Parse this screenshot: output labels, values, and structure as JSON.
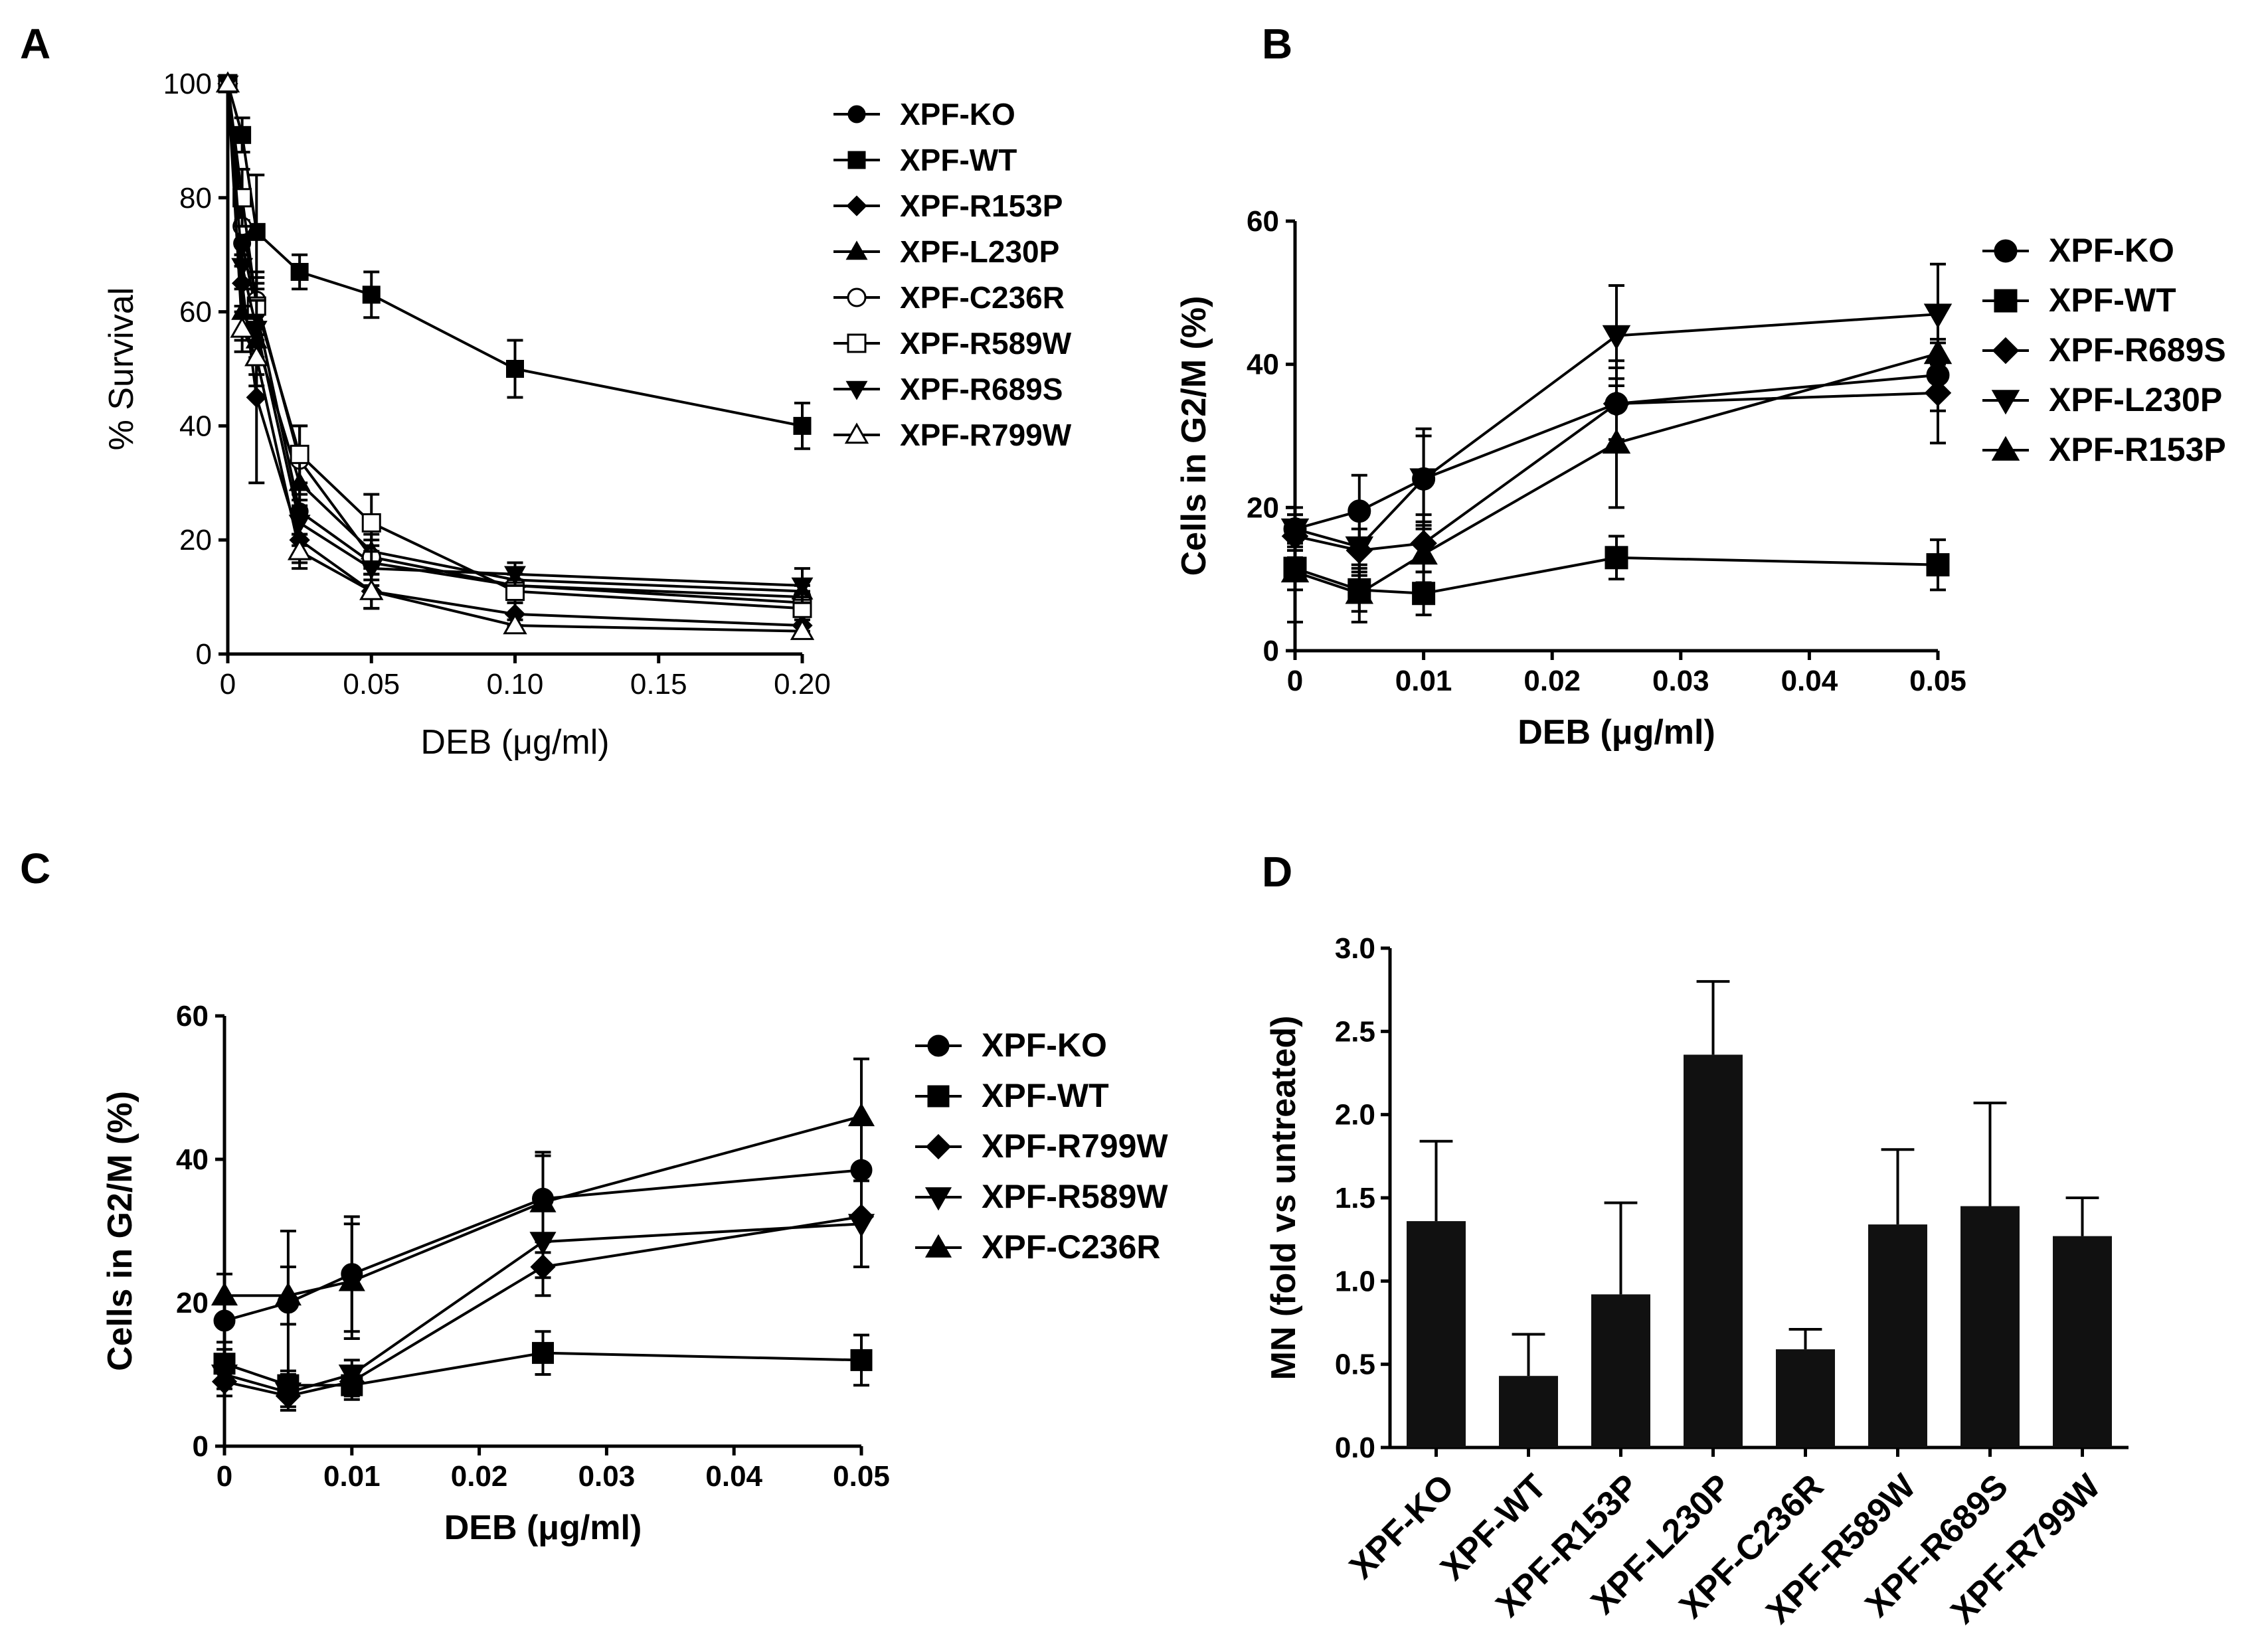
{
  "panels": {
    "A": "A",
    "B": "B",
    "C": "C",
    "D": "D"
  },
  "chart_data": [
    {
      "id": "A",
      "type": "line",
      "xlabel": "DEB (μg/ml)",
      "ylabel": "% Survival",
      "xlim": [
        0,
        0.2
      ],
      "ylim": [
        0,
        100
      ],
      "xticks": [
        0,
        0.05,
        0.1,
        0.15,
        0.2
      ],
      "xtick_labels": [
        "0",
        "0.05",
        "0.10",
        "0.15",
        "0.20"
      ],
      "yticks": [
        0,
        20,
        40,
        60,
        80,
        100
      ],
      "ytick_labels": [
        "0",
        "20",
        "40",
        "60",
        "80",
        "100"
      ],
      "x": [
        0,
        0.005,
        0.01,
        0.025,
        0.05,
        0.1,
        0.2
      ],
      "series": [
        {
          "name": "XPF-KO",
          "marker": "circle",
          "fill": "#000",
          "values": [
            100,
            72,
            60,
            25,
            16,
            12,
            10
          ],
          "err": [
            0,
            4,
            5,
            4,
            3,
            2,
            2
          ]
        },
        {
          "name": "XPF-WT",
          "marker": "square",
          "fill": "#000",
          "values": [
            100,
            91,
            74,
            67,
            63,
            50,
            40
          ],
          "err": [
            0,
            3,
            10,
            3,
            4,
            5,
            4
          ]
        },
        {
          "name": "XPF-R153P",
          "marker": "diamond",
          "fill": "#000",
          "values": [
            100,
            65,
            45,
            20,
            11,
            7,
            5
          ],
          "err": [
            0,
            5,
            15,
            4,
            3,
            2,
            1
          ]
        },
        {
          "name": "XPF-L230P",
          "marker": "triangle-up",
          "fill": "#000",
          "values": [
            100,
            60,
            55,
            30,
            18,
            13,
            11
          ],
          "err": [
            0,
            5,
            6,
            4,
            3,
            2,
            2
          ]
        },
        {
          "name": "XPF-C236R",
          "marker": "circle",
          "fill": "#fff",
          "values": [
            100,
            75,
            62,
            34,
            17,
            12,
            9
          ],
          "err": [
            0,
            5,
            5,
            6,
            3,
            2,
            2
          ]
        },
        {
          "name": "XPF-R589W",
          "marker": "square",
          "fill": "#fff",
          "values": [
            100,
            80,
            61,
            35,
            23,
            11,
            8
          ],
          "err": [
            0,
            5,
            5,
            5,
            5,
            2,
            2
          ]
        },
        {
          "name": "XPF-R689S",
          "marker": "triangle-down",
          "fill": "#000",
          "values": [
            100,
            68,
            57,
            23,
            15,
            14,
            12
          ],
          "err": [
            0,
            4,
            5,
            4,
            3,
            2,
            3
          ]
        },
        {
          "name": "XPF-R799W",
          "marker": "triangle-up",
          "fill": "#fff",
          "values": [
            100,
            57,
            52,
            18,
            11,
            5,
            4
          ],
          "err": [
            0,
            4,
            5,
            3,
            3,
            1,
            1
          ]
        }
      ]
    },
    {
      "id": "B",
      "type": "line",
      "xlabel": "DEB (μg/ml)",
      "ylabel": "Cells in G2/M (%)",
      "xlim": [
        0,
        0.05
      ],
      "ylim": [
        0,
        60
      ],
      "xticks": [
        0,
        0.01,
        0.02,
        0.03,
        0.04,
        0.05
      ],
      "xtick_labels": [
        "0",
        "0.01",
        "0.02",
        "0.03",
        "0.04",
        "0.05"
      ],
      "yticks": [
        0,
        20,
        40,
        60
      ],
      "ytick_labels": [
        "0",
        "20",
        "40",
        "60"
      ],
      "x": [
        0,
        0.005,
        0.01,
        0.025,
        0.05
      ],
      "series": [
        {
          "name": "XPF-KO",
          "marker": "circle",
          "fill": "#000",
          "values": [
            17,
            19.5,
            24,
            34.5,
            38.5
          ],
          "err": [
            2,
            5,
            7,
            6,
            5
          ]
        },
        {
          "name": "XPF-WT",
          "marker": "square",
          "fill": "#000",
          "values": [
            11.5,
            8.5,
            8,
            13,
            12
          ],
          "err": [
            3,
            3,
            3,
            3,
            3.5
          ]
        },
        {
          "name": "XPF-R689S",
          "marker": "diamond",
          "fill": "#000",
          "values": [
            16,
            14,
            15,
            34.5,
            36
          ],
          "err": [
            3,
            3,
            4,
            5,
            7
          ]
        },
        {
          "name": "XPF-L230P",
          "marker": "triangle-down",
          "fill": "#000",
          "values": [
            17,
            14.5,
            24,
            44,
            47
          ],
          "err": [
            3,
            4,
            6,
            7,
            7
          ]
        },
        {
          "name": "XPF-R153P",
          "marker": "triangle-up",
          "fill": "#000",
          "values": [
            11,
            8,
            13.5,
            29,
            41.5
          ],
          "err": [
            7,
            4,
            4,
            9,
            6
          ]
        }
      ],
      "legend": [
        "XPF-KO",
        "XPF-WT",
        "XPF-R689S",
        "XPF-L230P",
        "XPF-R153P"
      ]
    },
    {
      "id": "C",
      "type": "line",
      "xlabel": "DEB (μg/ml)",
      "ylabel": "Cells in G2/M (%)",
      "xlim": [
        0,
        0.05
      ],
      "ylim": [
        0,
        60
      ],
      "xticks": [
        0,
        0.01,
        0.02,
        0.03,
        0.04,
        0.05
      ],
      "xtick_labels": [
        "0",
        "0.01",
        "0.02",
        "0.03",
        "0.04",
        "0.05"
      ],
      "yticks": [
        0,
        20,
        40,
        60
      ],
      "ytick_labels": [
        "0",
        "20",
        "40",
        "60"
      ],
      "x": [
        0,
        0.005,
        0.01,
        0.025,
        0.05
      ],
      "series": [
        {
          "name": "XPF-KO",
          "marker": "circle",
          "fill": "#000",
          "values": [
            17.5,
            20,
            24,
            34.5,
            38.5
          ],
          "err": [
            3,
            10,
            8,
            6,
            7
          ]
        },
        {
          "name": "XPF-WT",
          "marker": "square",
          "fill": "#000",
          "values": [
            11.5,
            8.5,
            8.5,
            13,
            12
          ],
          "err": [
            2,
            2,
            2,
            3,
            3.5
          ]
        },
        {
          "name": "XPF-R799W",
          "marker": "diamond",
          "fill": "#000",
          "values": [
            9,
            7,
            9,
            25,
            32
          ],
          "err": [
            2,
            2,
            2,
            4,
            7
          ]
        },
        {
          "name": "XPF-R589W",
          "marker": "triangle-down",
          "fill": "#000",
          "values": [
            10,
            7.5,
            10,
            28.5,
            31
          ],
          "err": [
            2,
            2,
            2,
            5,
            6
          ]
        },
        {
          "name": "XPF-C236R",
          "marker": "triangle-up",
          "fill": "#000",
          "values": [
            21,
            21,
            23,
            34,
            46
          ],
          "err": [
            3,
            4,
            8,
            7,
            8
          ]
        }
      ]
    },
    {
      "id": "D",
      "type": "bar",
      "ylabel": "MN (fold vs untreated)",
      "ylim": [
        0,
        3
      ],
      "yticks": [
        0,
        0.5,
        1,
        1.5,
        2,
        2.5,
        3
      ],
      "ytick_labels": [
        "0.0",
        "0.5",
        "1.0",
        "1.5",
        "2.0",
        "2.5",
        "3.0"
      ],
      "categories": [
        "XPF-KO",
        "XPF-WT",
        "XPF-R153P",
        "XPF-L230P",
        "XPF-C236R",
        "XPF-R589W",
        "XPF-R689S",
        "XPF-R799W"
      ],
      "values": [
        1.36,
        0.43,
        0.92,
        2.36,
        0.59,
        1.34,
        1.45,
        1.27
      ],
      "err": [
        0.48,
        0.25,
        0.55,
        0.44,
        0.12,
        0.45,
        0.62,
        0.23
      ]
    }
  ]
}
